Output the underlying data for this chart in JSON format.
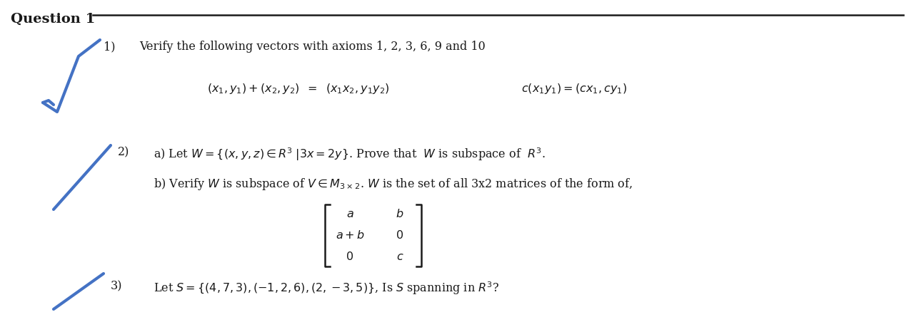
{
  "bg_color": "#ffffff",
  "title": "Question 1",
  "line1_text": "Verify the following vectors with axioms 1, 2, 3, 6, 9 and 10",
  "math1a": "$(x_1, y_1) + (x_2, y_2)\\;\\;=\\;\\;(x_1 x_2, y_1 y_2)$",
  "math1b": "$c(x_1 y_1) = (cx_1, cy_1)$",
  "line2a": "a) Let $W = \\{(x, y, z) \\in R^3 \\;|3x = 2y\\}$. Prove that  $W$ is subspace of  $R^3$.",
  "line2b": "b) Verify $W$ is subspace of $V \\in M_{3\\times2}$. $W$ is the set of all 3x2 matrices of the form of,",
  "line3": "Let $S = \\{(4,7,3), (-1,2,6), (2,-3,5)\\}$, Is $S$ spanning in $R^{3}$?",
  "blue_color": "#4472c4",
  "text_color": "#1a1a1a",
  "font_size_title": 14,
  "font_size_body": 11.5,
  "font_size_math": 11.5
}
